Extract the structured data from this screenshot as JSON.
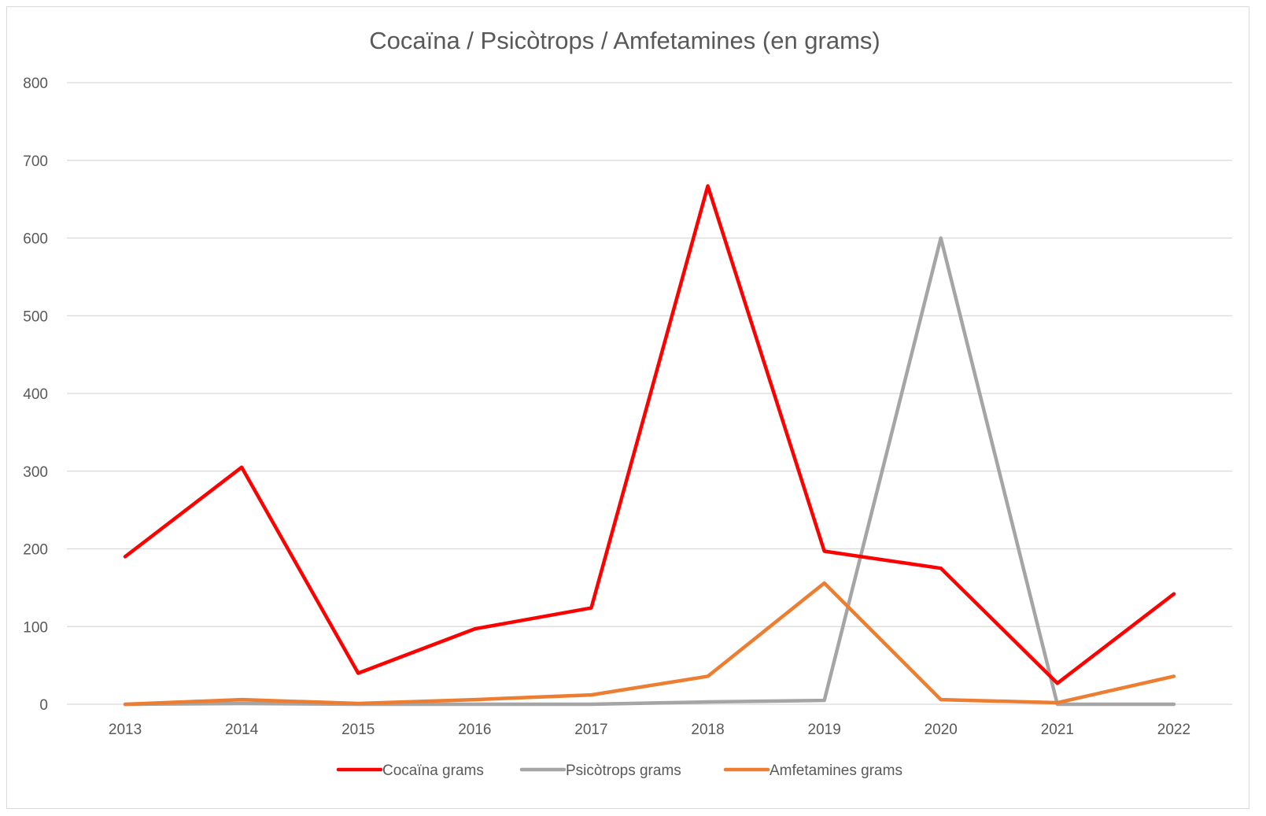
{
  "chart_data": {
    "type": "line",
    "title": "Cocaïna / Psicòtrops / Amfetamines (en grams)",
    "xlabel": "",
    "ylabel": "",
    "categories": [
      "2013",
      "2014",
      "2015",
      "2016",
      "2017",
      "2018",
      "2019",
      "2020",
      "2021",
      "2022"
    ],
    "ylim": [
      0,
      800
    ],
    "yticks": [
      0,
      100,
      200,
      300,
      400,
      500,
      600,
      700,
      800
    ],
    "grid": true,
    "legend_position": "bottom",
    "series": [
      {
        "name": "Cocaïna grams",
        "color": "#ff0000",
        "values": [
          190,
          305,
          40,
          97,
          124,
          667,
          197,
          175,
          27,
          142
        ]
      },
      {
        "name": "Psicòtrops grams",
        "color": "#a5a5a5",
        "values": [
          0,
          1,
          0,
          0,
          0,
          3,
          5,
          600,
          0,
          0
        ]
      },
      {
        "name": "Amfetamines grams",
        "color": "#ed7d31",
        "values": [
          0,
          6,
          1,
          6,
          12,
          36,
          156,
          6,
          2,
          36
        ]
      }
    ]
  }
}
